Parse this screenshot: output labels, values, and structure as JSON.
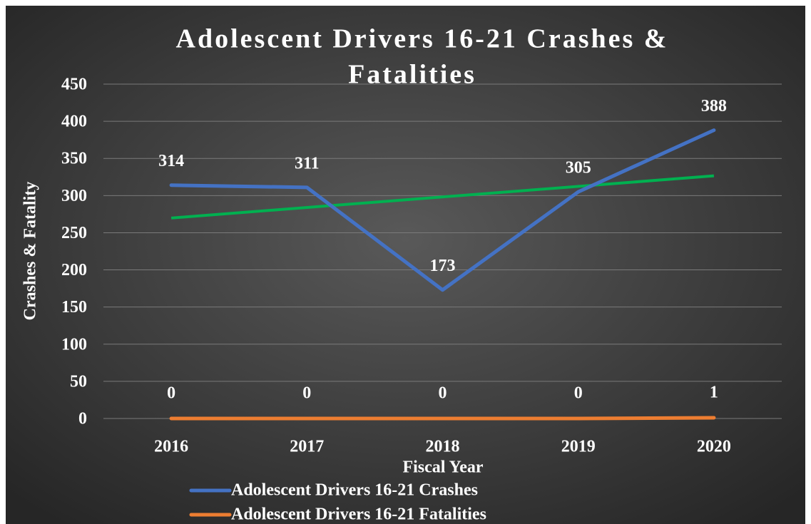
{
  "chart_data": {
    "type": "line",
    "title": "Adolescent Drivers 16-21 Crashes & Fatalities",
    "title_lines": [
      "Adolescent Drivers 16-21 Crashes &",
      "Fatalities"
    ],
    "x_label": "Fiscal Year",
    "y_label": "Crashes & Fatality",
    "categories": [
      "2016",
      "2017",
      "2018",
      "2019",
      "2020"
    ],
    "series": [
      {
        "name": "Adolescent Drivers 16-21 Crashes",
        "color": "#4472c4",
        "values": [
          314,
          311,
          173,
          305,
          388
        ]
      },
      {
        "name": "Adolescent Drivers 16-21 Fatalities",
        "color": "#ed7d31",
        "values": [
          0,
          0,
          0,
          0,
          1
        ]
      }
    ],
    "trendline": {
      "series": 0,
      "color": "#00b050"
    },
    "ylim": [
      0,
      450
    ],
    "yticks": [
      0,
      50,
      100,
      150,
      200,
      250,
      300,
      350,
      400,
      450
    ],
    "grid": true,
    "data_labels": true,
    "legend": "bottom"
  }
}
